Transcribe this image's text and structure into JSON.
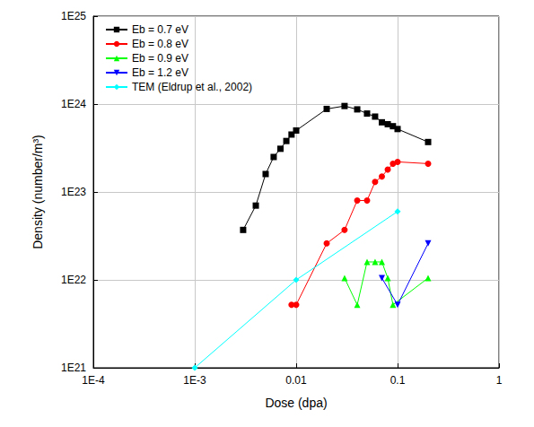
{
  "chart_data": {
    "type": "line",
    "x_label": "Dose (dpa)",
    "y_label": "Density (number/m³)",
    "log": true,
    "grid": true,
    "legend": "upper left",
    "xlim": [
      0.0001,
      1
    ],
    "xticks": [
      {
        "value": 0.0001,
        "label": "1E-4"
      },
      {
        "value": 0.001,
        "label": "1E-3"
      },
      0.01,
      0.1,
      1
    ],
    "ylim": [
      1e+21,
      1e+25
    ],
    "yticks": [
      {
        "value": 1e+21,
        "label": "1E21"
      },
      {
        "value": 1e+22,
        "label": "1E22"
      },
      {
        "value": 1e+23,
        "label": "1E23"
      },
      {
        "value": 1e+24,
        "label": "1E24"
      },
      {
        "value": 1e+25,
        "label": "1E25"
      }
    ],
    "series": [
      {
        "name": "Eb = 0.7 eV",
        "color": "#000000",
        "marker": "square",
        "x": [
          0.003,
          0.004,
          0.005,
          0.006,
          0.007,
          0.008,
          0.009,
          0.01,
          0.02,
          0.03,
          0.04,
          0.05,
          0.06,
          0.07,
          0.08,
          0.09,
          0.1,
          0.2
        ],
        "values": [
          3.7e+22,
          7e+22,
          1.6e+23,
          2.5e+23,
          3.1e+23,
          3.8e+23,
          4.5e+23,
          5e+23,
          8.8e+23,
          9.5e+23,
          8.7e+23,
          7.8e+23,
          7.2e+23,
          6.2e+23,
          5.9e+23,
          5.6e+23,
          5.2e+23,
          3.7e+23
        ]
      },
      {
        "name": "Eb = 0.8 eV",
        "color": "#ff0000",
        "marker": "circle",
        "x": [
          0.009,
          0.01,
          0.02,
          0.03,
          0.04,
          0.05,
          0.06,
          0.07,
          0.08,
          0.09,
          0.1,
          0.2
        ],
        "values": [
          5.2e+21,
          5.2e+21,
          2.6e+22,
          3.7e+22,
          8e+22,
          8e+22,
          1.3e+23,
          1.5e+23,
          1.8e+23,
          2.1e+23,
          2.2e+23,
          2.1e+23
        ]
      },
      {
        "name": "Eb = 0.9 eV",
        "color": "#00ff00",
        "marker": "triangle",
        "x": [
          0.03,
          0.04,
          0.05,
          0.06,
          0.07,
          0.08,
          0.09,
          0.2
        ],
        "values": [
          1.05e+22,
          5.2e+21,
          1.6e+22,
          1.6e+22,
          1.6e+22,
          1.05e+22,
          5.2e+21,
          1.05e+22
        ]
      },
      {
        "name": "Eb = 1.2 eV",
        "color": "#0000ff",
        "marker": "triangle_down",
        "x": [
          0.07,
          0.1,
          0.2
        ],
        "values": [
          1.05e+22,
          5.2e+21,
          2.6e+22
        ]
      },
      {
        "name": "TEM (Eldrup et al., 2002)",
        "color": "#00ffff",
        "marker": "diamond",
        "x": [
          0.001,
          0.01,
          0.1
        ],
        "values": [
          1e+21,
          1e+22,
          6e+22
        ]
      }
    ]
  }
}
